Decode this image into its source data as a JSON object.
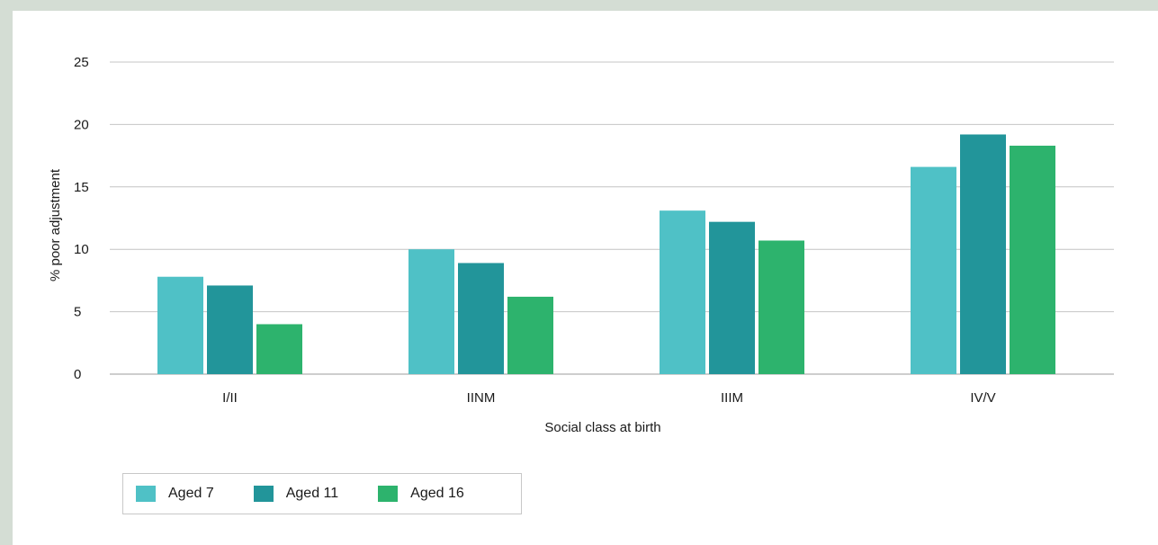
{
  "chart_data": {
    "type": "bar",
    "title": "",
    "xlabel": "Social class at birth",
    "ylabel": "% poor adjustment",
    "ylim": [
      0,
      25
    ],
    "yticks": [
      "0",
      "5",
      "10",
      "15",
      "20",
      "25"
    ],
    "grid": true,
    "legend_position": "bottom-left",
    "categories": [
      "I/II",
      "IINM",
      "IIIM",
      "IV/V"
    ],
    "series": [
      {
        "name": "Aged 7",
        "color": "#4fc1c6",
        "values": [
          7.8,
          10.0,
          13.1,
          16.6
        ]
      },
      {
        "name": "Aged 11",
        "color": "#22959a",
        "values": [
          7.1,
          8.9,
          12.2,
          19.2
        ]
      },
      {
        "name": "Aged 16",
        "color": "#2db36d",
        "values": [
          4.0,
          6.2,
          10.7,
          18.3
        ]
      }
    ]
  }
}
